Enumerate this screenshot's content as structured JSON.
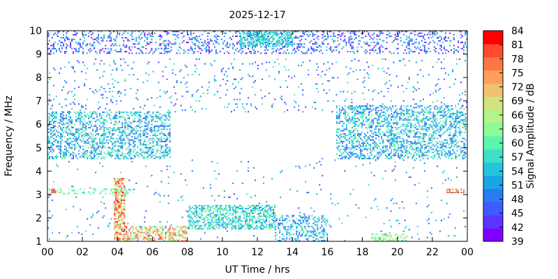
{
  "chart_data": {
    "type": "heatmap",
    "title": "2025-12-17",
    "xlabel": "UT Time / hrs",
    "ylabel": "Frequency / MHz",
    "colorbar_label": "Signal Amplitude / dB",
    "xlim": [
      0,
      24
    ],
    "ylim": [
      1,
      10
    ],
    "x_ticks": [
      "00",
      "02",
      "04",
      "06",
      "08",
      "10",
      "12",
      "14",
      "16",
      "18",
      "20",
      "22",
      "00"
    ],
    "y_ticks": [
      "1",
      "2",
      "3",
      "4",
      "5",
      "6",
      "7",
      "8",
      "9",
      "10"
    ],
    "colorbar_ticks": [
      "39",
      "42",
      "45",
      "48",
      "51",
      "54",
      "57",
      "60",
      "63",
      "66",
      "69",
      "72",
      "75",
      "78",
      "81",
      "84"
    ],
    "colorbar_range": [
      39,
      84
    ],
    "colorscale": [
      "#7f00ff",
      "#5a35ff",
      "#3d5bff",
      "#2a7bf4",
      "#1aa6e6",
      "#24c4dc",
      "#3fe0c8",
      "#5cf5b0",
      "#8bfa97",
      "#b4f489",
      "#d3e17e",
      "#eec26f",
      "#ff9f5a",
      "#ff7645",
      "#ff4a2d",
      "#ff0000"
    ],
    "regions": [
      {
        "x": [
          0.0,
          24.0
        ],
        "f": [
          9.0,
          10.0
        ],
        "level": [
          40,
          56
        ],
        "density": 0.25
      },
      {
        "x": [
          11.0,
          14.0
        ],
        "f": [
          9.3,
          10.0
        ],
        "level": [
          52,
          60
        ],
        "density": 0.6
      },
      {
        "x": [
          0.0,
          7.0
        ],
        "f": [
          4.5,
          6.5
        ],
        "level": [
          46,
          62
        ],
        "density": 0.45
      },
      {
        "x": [
          16.5,
          24.0
        ],
        "f": [
          4.5,
          6.8
        ],
        "level": [
          46,
          62
        ],
        "density": 0.45
      },
      {
        "x": [
          0.0,
          24.0
        ],
        "f": [
          6.5,
          8.8
        ],
        "level": [
          42,
          58
        ],
        "density": 0.05
      },
      {
        "x": [
          3.8,
          4.4
        ],
        "f": [
          1.0,
          3.7
        ],
        "level": [
          62,
          84
        ],
        "density": 0.7
      },
      {
        "x": [
          4.4,
          8.0
        ],
        "f": [
          1.0,
          1.6
        ],
        "level": [
          60,
          80
        ],
        "density": 0.55
      },
      {
        "x": [
          8.0,
          13.0
        ],
        "f": [
          1.5,
          2.5
        ],
        "level": [
          50,
          64
        ],
        "density": 0.55
      },
      {
        "x": [
          13.0,
          16.0
        ],
        "f": [
          1.0,
          2.1
        ],
        "level": [
          46,
          60
        ],
        "density": 0.35
      },
      {
        "x": [
          0.2,
          0.5
        ],
        "f": [
          3.05,
          3.2
        ],
        "level": [
          76,
          82
        ],
        "density": 0.9
      },
      {
        "x": [
          22.8,
          23.8
        ],
        "f": [
          3.05,
          3.2
        ],
        "level": [
          72,
          82
        ],
        "density": 0.5
      },
      {
        "x": [
          0.0,
          5.0
        ],
        "f": [
          3.0,
          3.2
        ],
        "level": [
          58,
          66
        ],
        "density": 0.3
      },
      {
        "x": [
          18.5,
          20.5
        ],
        "f": [
          1.0,
          1.3
        ],
        "level": [
          60,
          68
        ],
        "density": 0.5
      },
      {
        "x": [
          0.0,
          24.0
        ],
        "f": [
          1.0,
          4.5
        ],
        "level": [
          44,
          58
        ],
        "density": 0.02
      }
    ]
  }
}
